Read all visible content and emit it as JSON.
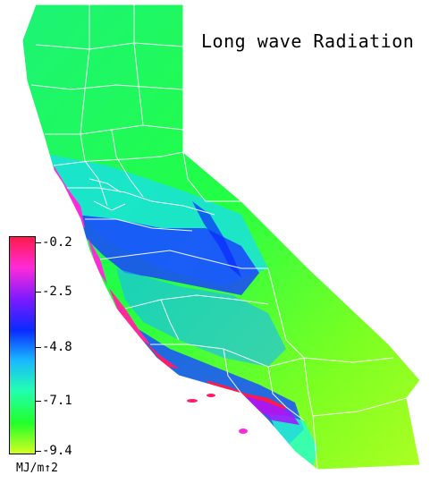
{
  "title": "Long wave Radiation",
  "legend": {
    "ticks": [
      "-0.2",
      "-2.5",
      "-4.8",
      "-7.1",
      "-9.4"
    ],
    "unit": "MJ/m↑2",
    "colors": [
      "#ff1a4a",
      "#ff2ad8",
      "#7a1aff",
      "#0a2aff",
      "#19b8ff",
      "#22ffb0",
      "#22ff2a",
      "#d4ff22"
    ]
  }
}
